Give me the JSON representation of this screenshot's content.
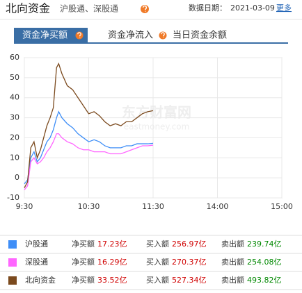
{
  "header": {
    "title": "北向资金",
    "subtitle": "沪股通、深股通",
    "date_label": "数据日期：",
    "date": "2021-03-09",
    "more": "更多"
  },
  "tabs": [
    "资金净买额",
    "资金净流入",
    "当日资金余额"
  ],
  "watermark": [
    "东方财富网",
    "eastmoney.com"
  ],
  "chart_data": {
    "type": "line",
    "x": [
      0,
      3,
      6,
      9,
      12,
      15,
      18,
      21,
      24,
      27,
      30,
      32,
      35,
      40,
      45,
      50,
      55,
      60,
      65,
      70,
      75,
      80,
      85,
      90,
      95,
      100,
      105,
      110,
      115,
      120
    ],
    "xlim": [
      0,
      240
    ],
    "xticks": [
      {
        "value": 0,
        "label": "9:30"
      },
      {
        "value": 60,
        "label": "10:30"
      },
      {
        "value": 120,
        "label": "11:30"
      },
      {
        "value": 180,
        "label": "14:00"
      },
      {
        "value": 240,
        "label": "15:00"
      }
    ],
    "ylim": [
      -10,
      60
    ],
    "yticks": [
      -10,
      0,
      10,
      20,
      30,
      40,
      50,
      60
    ],
    "grid": true,
    "series": [
      {
        "name": "沪股通",
        "color": "#3e8ef7",
        "values": [
          -3,
          -1,
          10,
          13,
          8,
          10,
          14,
          18,
          20,
          24,
          30,
          33,
          30,
          27,
          25,
          22,
          20,
          18,
          19,
          18,
          16,
          15,
          15,
          15,
          16,
          16,
          17,
          17,
          17,
          17.23
        ]
      },
      {
        "name": "深股通",
        "color": "#ff66ff",
        "values": [
          -6,
          -4,
          8,
          10,
          7,
          8,
          10,
          13,
          15,
          18,
          22,
          22,
          20,
          18,
          17,
          15,
          14,
          14,
          13,
          13,
          13,
          12,
          12,
          12,
          13,
          14,
          15,
          16,
          16,
          16.29
        ]
      },
      {
        "name": "北向资金",
        "color": "#7b4a1e",
        "values": [
          -5,
          -2,
          15,
          18,
          10,
          14,
          20,
          26,
          30,
          35,
          55,
          57,
          52,
          46,
          44,
          40,
          36,
          32,
          33,
          31,
          28,
          26,
          27,
          26,
          28,
          28,
          30,
          32,
          33,
          33.52
        ]
      }
    ]
  },
  "summary": {
    "rows": [
      {
        "name": "沪股通",
        "net_label": "净买额",
        "net": "17.23亿",
        "buy_label": "买入额",
        "buy": "256.97亿",
        "sell_label": "卖出额",
        "sell": "239.74亿"
      },
      {
        "name": "深股通",
        "net_label": "净买额",
        "net": "16.29亿",
        "buy_label": "买入额",
        "buy": "270.37亿",
        "sell_label": "卖出额",
        "sell": "254.08亿"
      },
      {
        "name": "北向资金",
        "net_label": "净买额",
        "net": "33.52亿",
        "buy_label": "买入额",
        "buy": "527.34亿",
        "sell_label": "卖出额",
        "sell": "493.82亿"
      }
    ]
  }
}
